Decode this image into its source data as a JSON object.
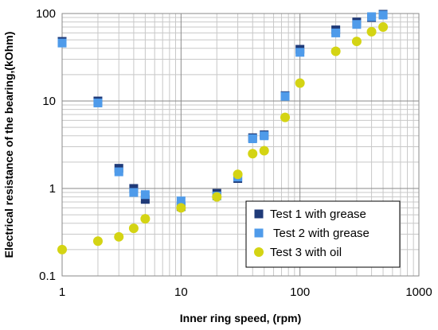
{
  "chart_data": {
    "type": "scatter",
    "xlabel": "Inner  ring speed, (rpm)",
    "ylabel": "Electrical resistance of the bearing,(kOhm)",
    "xscale": "log",
    "yscale": "log",
    "xlim": [
      1,
      1000
    ],
    "ylim": [
      0.1,
      100
    ],
    "xticks": [
      "1",
      "10",
      "100",
      "1000"
    ],
    "yticks": [
      "100",
      "10",
      "1",
      "0.1"
    ],
    "grid": true,
    "legend_position": "bottom-right",
    "series": [
      {
        "name": "Test 1 with grease",
        "color": "#1f3a78",
        "marker": "square",
        "x": [
          1,
          2,
          3,
          4,
          5,
          10,
          20,
          30,
          40,
          50,
          75,
          100,
          200,
          300,
          400,
          500
        ],
        "y": [
          48,
          10,
          1.7,
          1.0,
          0.75,
          0.62,
          0.88,
          1.3,
          3.8,
          4.1,
          11.5,
          39,
          65,
          80,
          90,
          98
        ]
      },
      {
        "name": "Test 2 with grease",
        "color": "#4f9bea",
        "marker": "square",
        "x": [
          1,
          2,
          3,
          4,
          5,
          10,
          20,
          30,
          40,
          50,
          75,
          100,
          200,
          300,
          400,
          500
        ],
        "y": [
          46,
          9.5,
          1.55,
          0.9,
          0.85,
          0.72,
          0.82,
          1.35,
          3.7,
          4.0,
          11.3,
          36,
          60,
          75,
          92,
          96
        ]
      },
      {
        "name": "Test 3 with oil",
        "color": "#d4d414",
        "marker": "circle",
        "x": [
          1,
          2,
          3,
          4,
          5,
          10,
          20,
          30,
          40,
          50,
          75,
          100,
          200,
          300,
          400,
          500
        ],
        "y": [
          0.2,
          0.25,
          0.28,
          0.35,
          0.45,
          0.6,
          0.8,
          1.45,
          2.5,
          2.7,
          6.5,
          16,
          37,
          48,
          62,
          70
        ]
      }
    ]
  }
}
